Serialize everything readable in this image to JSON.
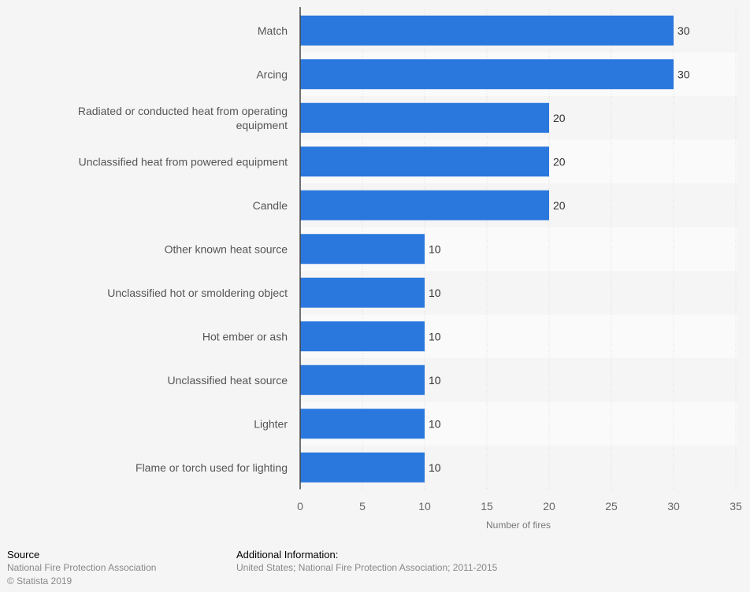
{
  "chart_data": {
    "type": "bar",
    "orientation": "horizontal",
    "categories": [
      "Match",
      "Arcing",
      "Radiated or conducted heat from operating equipment",
      "Unclassified heat from powered equipment",
      "Candle",
      "Other known heat source",
      "Unclassified hot or smoldering object",
      "Hot ember or ash",
      "Unclassified heat source",
      "Lighter",
      "Flame or torch used for lighting"
    ],
    "values": [
      30,
      30,
      20,
      20,
      20,
      10,
      10,
      10,
      10,
      10,
      10
    ],
    "xlabel": "Number of fires",
    "ylabel": "",
    "xlim": [
      0,
      35
    ],
    "xticks": [
      0,
      5,
      10,
      15,
      20,
      25,
      30,
      35
    ],
    "grid": true,
    "bar_color": "#2a77dd"
  },
  "footer": {
    "source_heading": "Source",
    "source_text": "National Fire Protection Association",
    "copyright": "© Statista 2019",
    "info_heading": "Additional Information:",
    "info_text": "United States; National Fire Protection Association; 2011-2015"
  }
}
